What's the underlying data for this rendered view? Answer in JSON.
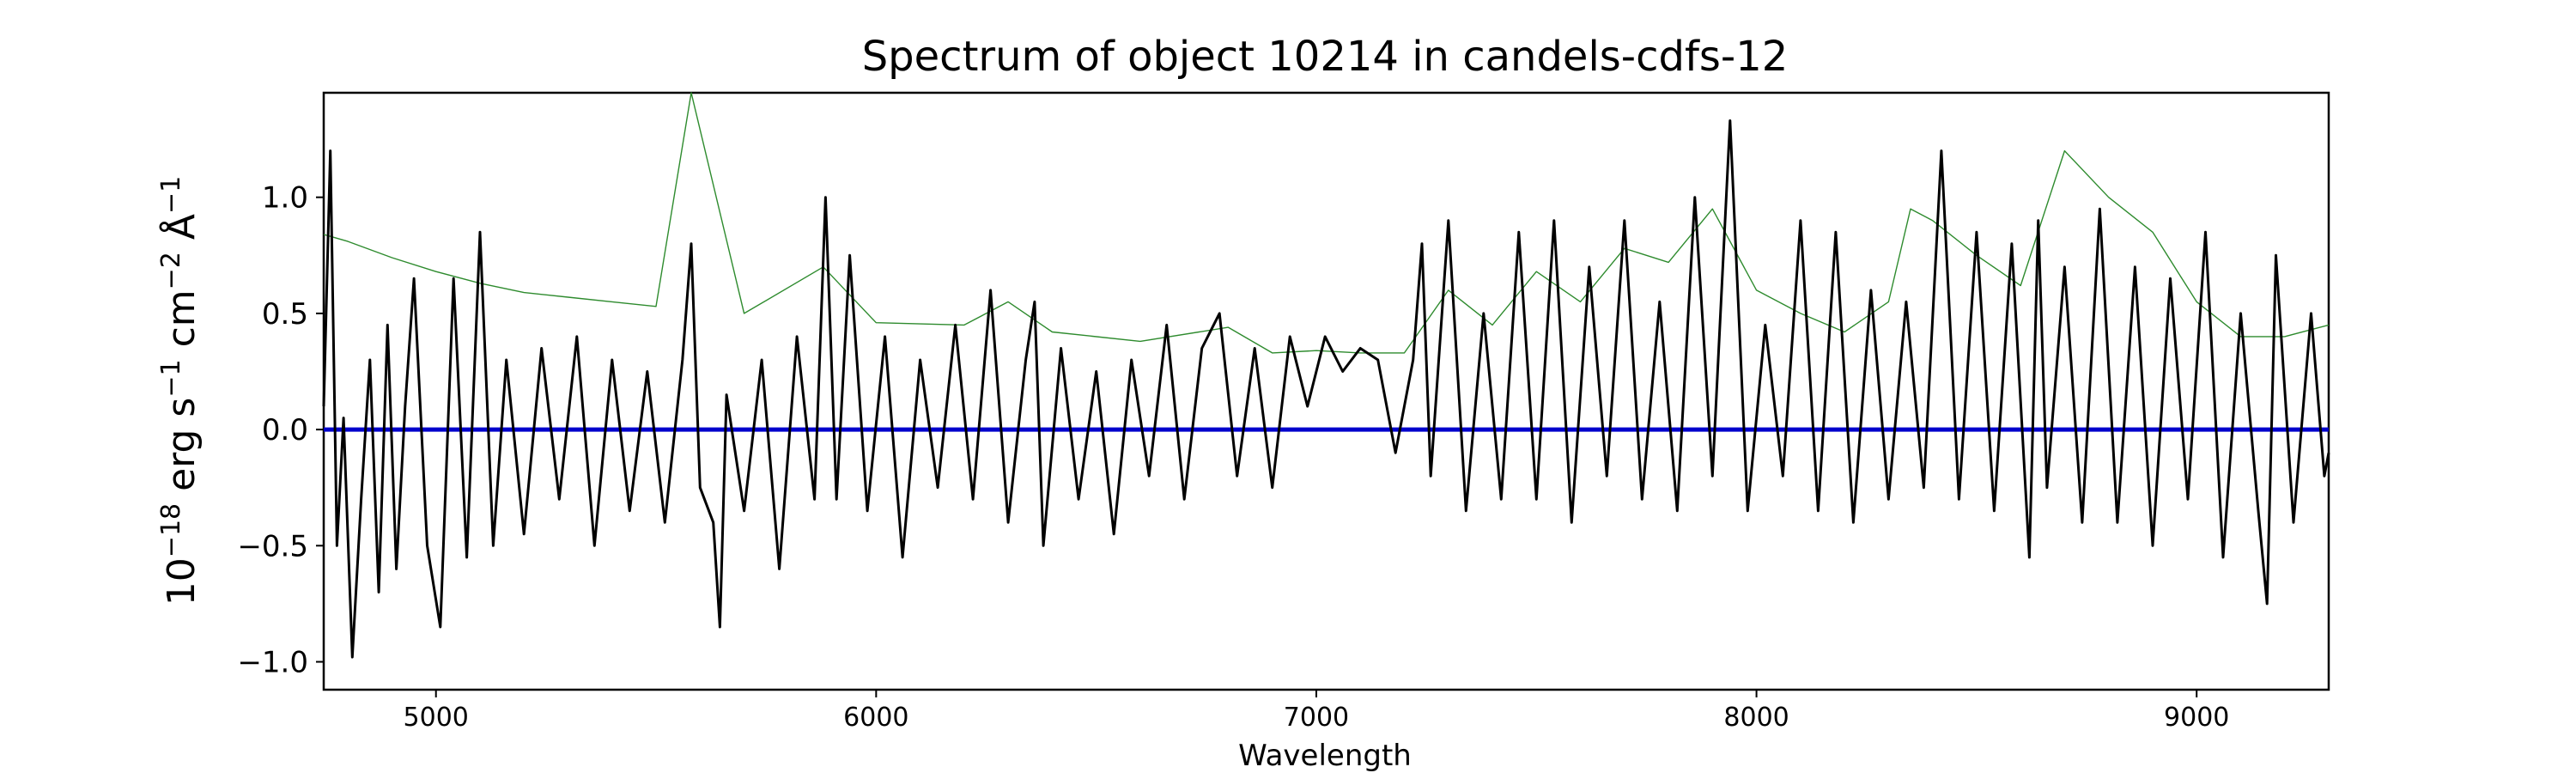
{
  "chart_data": {
    "type": "line",
    "title": "Spectrum of object 10214 in candels-cdfs-12",
    "xlabel": "Wavelength",
    "ylabel_parts": {
      "base": "10",
      "exp1": "−18",
      "mid": " erg s",
      "exp2": "−1",
      "mid2": " cm",
      "exp3": "−2",
      "mid3": " Å",
      "exp4": "−1"
    },
    "xlim": [
      4745,
      9300
    ],
    "ylim": [
      -1.12,
      1.45
    ],
    "xticks": [
      5000,
      6000,
      7000,
      8000,
      9000
    ],
    "xtick_labels": [
      "5000",
      "6000",
      "7000",
      "8000",
      "9000"
    ],
    "yticks": [
      -1.0,
      -0.5,
      0.0,
      0.5,
      1.0
    ],
    "ytick_labels": [
      "−1.0",
      "−0.5",
      "0.0",
      "0.5",
      "1.0"
    ],
    "grid": false,
    "series": [
      {
        "color": "#2e8b2e",
        "style": "thin noisy line (error spectrum)",
        "x": [
          4745,
          4800,
          4900,
          5000,
          5100,
          5200,
          5300,
          5400,
          5500,
          5580,
          5700,
          5880,
          6000,
          6200,
          6300,
          6400,
          6600,
          6800,
          6900,
          7000,
          7100,
          7200,
          7300,
          7400,
          7500,
          7600,
          7700,
          7800,
          7900,
          8000,
          8100,
          8200,
          8300,
          8350,
          8400,
          8500,
          8600,
          8700,
          8800,
          8900,
          9000,
          9100,
          9200,
          9300
        ],
        "y": [
          0.84,
          0.81,
          0.74,
          0.68,
          0.63,
          0.59,
          0.57,
          0.55,
          0.53,
          1.45,
          0.5,
          0.7,
          0.46,
          0.45,
          0.55,
          0.42,
          0.38,
          0.44,
          0.33,
          0.34,
          0.33,
          0.33,
          0.6,
          0.45,
          0.68,
          0.55,
          0.78,
          0.72,
          0.95,
          0.6,
          0.5,
          0.42,
          0.55,
          0.95,
          0.9,
          0.75,
          0.62,
          1.2,
          1.0,
          0.85,
          0.55,
          0.4,
          0.4,
          0.45
        ]
      },
      {
        "color": "#0000cc",
        "style": "model continuum",
        "x": [
          4745,
          9300
        ],
        "y": [
          0.0,
          0.0
        ]
      },
      {
        "color": "#000000",
        "style": "observed flux",
        "x": [
          4745,
          4760,
          4775,
          4790,
          4810,
          4830,
          4850,
          4870,
          4890,
          4910,
          4930,
          4950,
          4980,
          5010,
          5040,
          5070,
          5100,
          5130,
          5160,
          5200,
          5240,
          5280,
          5320,
          5360,
          5400,
          5440,
          5480,
          5520,
          5560,
          5580,
          5600,
          5630,
          5645,
          5660,
          5700,
          5740,
          5780,
          5820,
          5860,
          5885,
          5910,
          5940,
          5980,
          6020,
          6060,
          6100,
          6140,
          6180,
          6220,
          6260,
          6300,
          6340,
          6360,
          6380,
          6420,
          6460,
          6500,
          6540,
          6580,
          6620,
          6660,
          6700,
          6740,
          6780,
          6820,
          6860,
          6900,
          6940,
          6980,
          7020,
          7060,
          7100,
          7140,
          7180,
          7220,
          7240,
          7260,
          7300,
          7340,
          7380,
          7420,
          7460,
          7500,
          7540,
          7580,
          7620,
          7660,
          7700,
          7740,
          7780,
          7820,
          7860,
          7900,
          7940,
          7980,
          8020,
          8060,
          8100,
          8140,
          8180,
          8220,
          8260,
          8300,
          8340,
          8380,
          8420,
          8460,
          8500,
          8540,
          8580,
          8620,
          8640,
          8660,
          8700,
          8740,
          8780,
          8820,
          8860,
          8900,
          8940,
          8980,
          9020,
          9060,
          9100,
          9140,
          9160,
          9180,
          9220,
          9260,
          9290,
          9300
        ],
        "y": [
          0.1,
          1.2,
          -0.5,
          0.05,
          -0.98,
          -0.3,
          0.3,
          -0.7,
          0.45,
          -0.6,
          0.1,
          0.65,
          -0.5,
          -0.85,
          0.65,
          -0.55,
          0.85,
          -0.5,
          0.3,
          -0.45,
          0.35,
          -0.3,
          0.4,
          -0.5,
          0.3,
          -0.35,
          0.25,
          -0.4,
          0.3,
          0.8,
          -0.25,
          -0.4,
          -0.85,
          0.15,
          -0.35,
          0.3,
          -0.6,
          0.4,
          -0.3,
          1.0,
          -0.3,
          0.75,
          -0.35,
          0.4,
          -0.55,
          0.3,
          -0.25,
          0.45,
          -0.3,
          0.6,
          -0.4,
          0.3,
          0.55,
          -0.5,
          0.35,
          -0.3,
          0.25,
          -0.45,
          0.3,
          -0.2,
          0.45,
          -0.3,
          0.35,
          0.5,
          -0.2,
          0.35,
          -0.25,
          0.4,
          0.1,
          0.4,
          0.25,
          0.35,
          0.3,
          -0.1,
          0.3,
          0.8,
          -0.2,
          0.9,
          -0.35,
          0.5,
          -0.3,
          0.85,
          -0.3,
          0.9,
          -0.4,
          0.7,
          -0.2,
          0.9,
          -0.3,
          0.55,
          -0.35,
          1.0,
          -0.2,
          1.33,
          -0.35,
          0.45,
          -0.2,
          0.9,
          -0.35,
          0.85,
          -0.4,
          0.6,
          -0.3,
          0.55,
          -0.25,
          1.2,
          -0.3,
          0.85,
          -0.35,
          0.8,
          -0.55,
          0.9,
          -0.25,
          0.7,
          -0.4,
          0.95,
          -0.4,
          0.7,
          -0.5,
          0.65,
          -0.3,
          0.85,
          -0.55,
          0.5,
          -0.35,
          -0.75,
          0.75,
          -0.4,
          0.5,
          -0.2,
          -0.1
        ]
      }
    ]
  }
}
